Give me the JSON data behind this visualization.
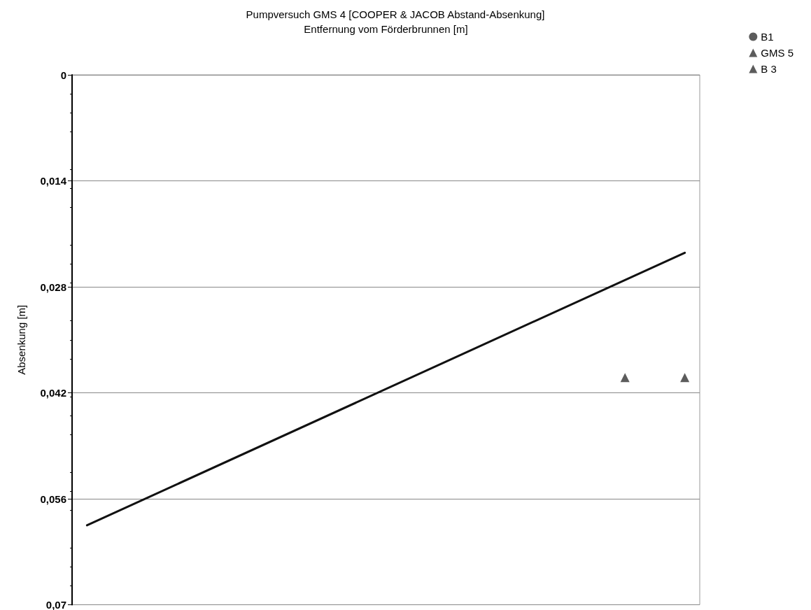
{
  "chart_data": {
    "type": "scatter",
    "title": "Pumpversuch GMS 4 [COOPER & JACOB Abstand-Absenkung]",
    "xlabel": "Entfernung vom Förderbrunnen [m]",
    "ylabel": "Absenkung [m]",
    "categories": [
      null,
      null,
      null,
      null,
      null,
      null,
      null,
      null,
      null,
      null,
      null,
      null,
      null,
      null,
      null,
      null,
      null,
      null,
      null,
      null,
      null
    ],
    "series": [
      {
        "type": "line",
        "color": "#111111",
        "marker": "none",
        "values": [
          0.0595,
          null,
          null,
          null,
          null,
          null,
          null,
          null,
          null,
          null,
          null,
          null,
          null,
          null,
          null,
          null,
          null,
          null,
          null,
          null,
          0.0235
        ]
      },
      {
        "name": "B1",
        "color": "#333333",
        "marker": "circle",
        "values": [
          null,
          null,
          null,
          null,
          null,
          null,
          null,
          null,
          null,
          null,
          null,
          null,
          null,
          null,
          null,
          null,
          null,
          null,
          null,
          null,
          null
        ]
      },
      {
        "name": "GMS 5",
        "color": "#333333",
        "marker": "triangle",
        "values": [
          null,
          null,
          null,
          null,
          null,
          null,
          null,
          null,
          null,
          null,
          null,
          null,
          null,
          null,
          null,
          null,
          null,
          null,
          null,
          null,
          0.04
        ]
      },
      {
        "name": "B 3",
        "color": "#333333",
        "marker": "triangle",
        "values": [
          null,
          null,
          null,
          null,
          null,
          null,
          null,
          null,
          null,
          null,
          null,
          null,
          null,
          null,
          null,
          null,
          null,
          null,
          0.04,
          null,
          null
        ]
      }
    ],
    "ylim": [
      0.07,
      0
    ],
    "yticks": [
      {
        "value": 0,
        "label": "0"
      },
      {
        "value": 0.014,
        "label": "0,014"
      },
      {
        "value": 0.028,
        "label": "0,028"
      },
      {
        "value": 0.042,
        "label": "0,042"
      },
      {
        "value": 0.056,
        "label": "0,056"
      },
      {
        "value": 0.07,
        "label": "0,07"
      }
    ],
    "grid": "y",
    "legend": "top right",
    "tick_labels": "y"
  }
}
